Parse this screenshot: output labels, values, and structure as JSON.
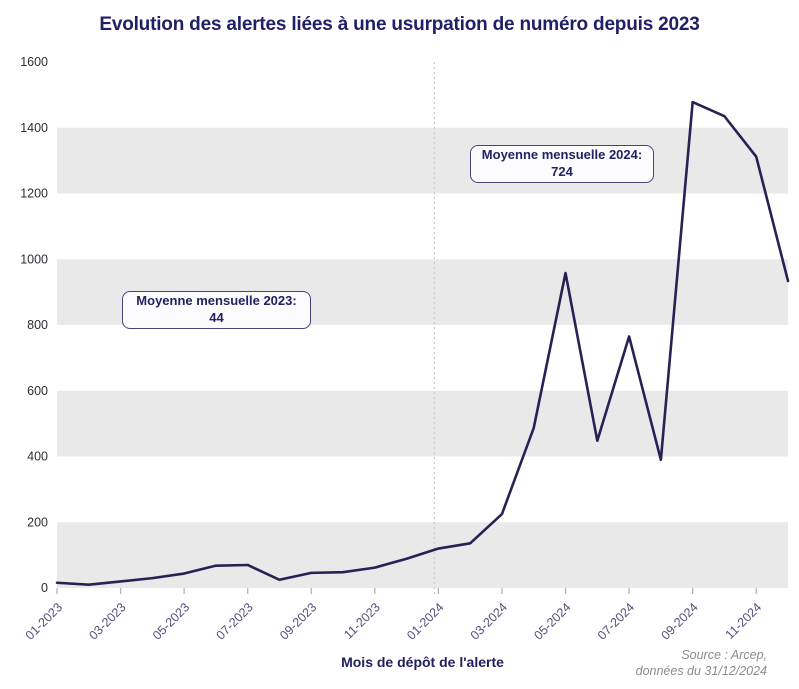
{
  "title": "Evolution des alertes liées à une usurpation de numéro depuis 2023",
  "chart_data": {
    "type": "line",
    "title": "Evolution des alertes liées à une usurpation de numéro depuis 2023",
    "x": [
      "01-2023",
      "02-2023",
      "03-2023",
      "04-2023",
      "05-2023",
      "06-2023",
      "07-2023",
      "08-2023",
      "09-2023",
      "10-2023",
      "11-2023",
      "12-2023",
      "01-2024",
      "02-2024",
      "03-2024",
      "04-2024",
      "05-2024",
      "06-2024",
      "07-2024",
      "08-2024",
      "09-2024",
      "10-2024",
      "11-2024",
      "12-2024"
    ],
    "values": [
      16,
      10,
      20,
      30,
      44,
      68,
      70,
      25,
      46,
      48,
      62,
      89,
      120,
      136,
      225,
      487,
      958,
      448,
      765,
      390,
      1478,
      1435,
      1312,
      934
    ],
    "xlabel": "Mois de dépôt de l'alerte",
    "ylabel": "",
    "ylim": [
      0,
      1600
    ],
    "yticks": [
      0,
      200,
      400,
      600,
      800,
      1000,
      1200,
      1400,
      1600
    ],
    "x_label_every": 2,
    "divider_index": 12,
    "grid": "alternating horizontal bands (gray on 0-200, 400-600, 800-1000, 1200-1400)",
    "legend": "none",
    "annotations": [
      {
        "label": "Moyenne mensuelle 2023:",
        "value": "44"
      },
      {
        "label": "Moyenne mensuelle 2024:",
        "value": "724"
      }
    ],
    "averages": {
      "2023": 44,
      "2024": 724
    }
  },
  "source": {
    "line1": "Source : Arcep,",
    "line2": "données du 31/12/2024"
  },
  "colors": {
    "line": "#262254",
    "title": "#1f2066",
    "band": "#e9e9e9",
    "x_tick_label": "#50507c",
    "y_tick_label": "#2e2e38",
    "tick_mark": "#b3b3b3",
    "divider": "#c9c9c9",
    "annotation_border": "#45447b",
    "annotation_bg": "#fcfcff",
    "source_text": "#8b8b8b"
  }
}
